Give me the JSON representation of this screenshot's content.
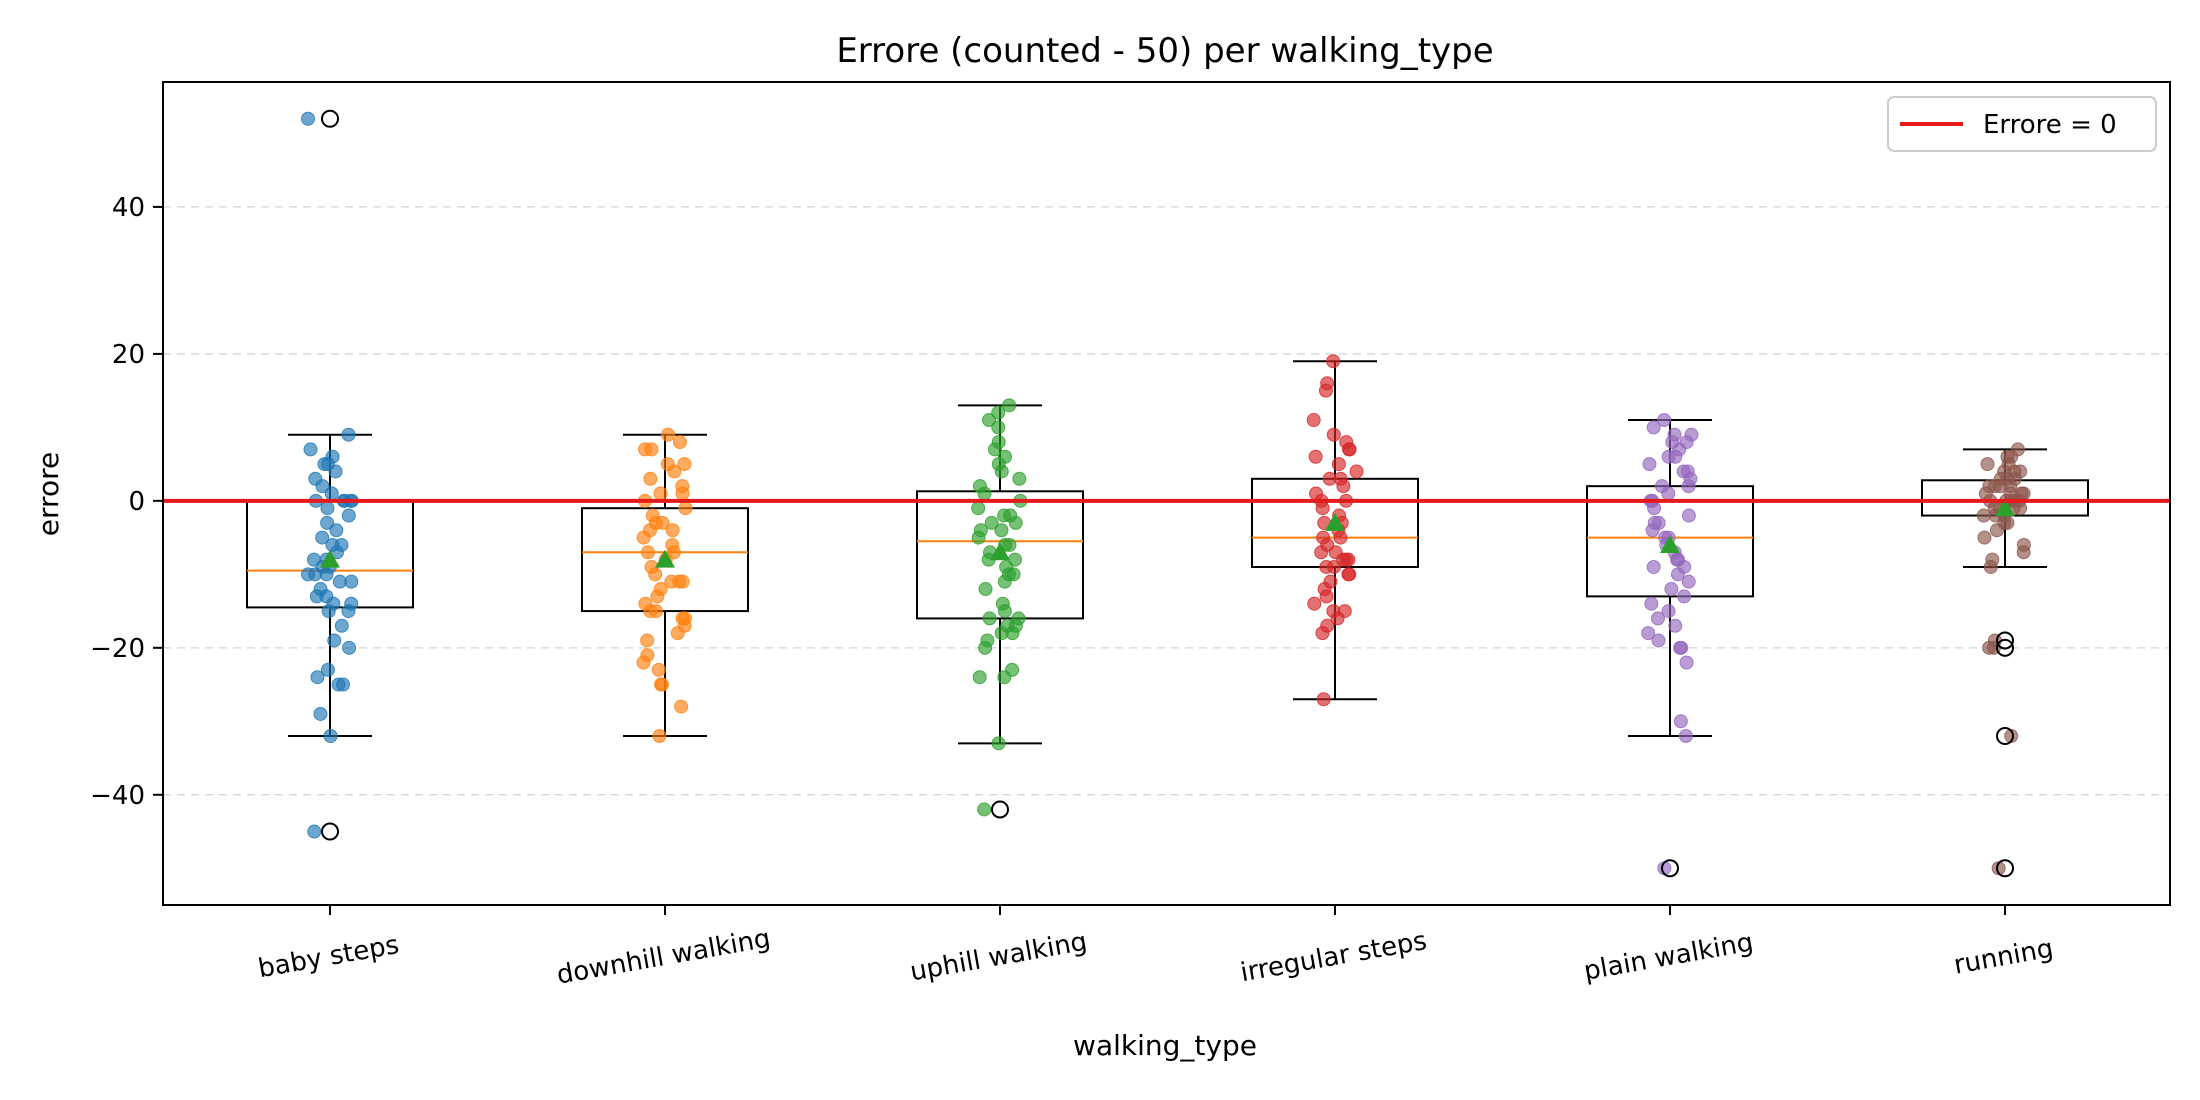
{
  "chart_data": {
    "type": "box",
    "title": "Errore (counted - 50) per walking_type",
    "xlabel": "walking_type",
    "ylabel": "errore",
    "ylim": [
      -55,
      57
    ],
    "yticks": [
      -40,
      -20,
      0,
      20,
      40
    ],
    "ytick_labels": [
      "−40",
      "−20",
      "0",
      "20",
      "40"
    ],
    "grid": "horizontal dashed",
    "legend": {
      "location": "top-right",
      "label": "Errore = 0",
      "color": "#e41a1c"
    },
    "reference_line": {
      "y": 0,
      "color": "#e41a1c"
    },
    "categories": [
      "baby steps",
      "downhill walking",
      "uphill walking",
      "irregular steps",
      "plain walking",
      "running"
    ],
    "series": [
      {
        "category": "baby steps",
        "color": "#1f77b4",
        "q1": -14.5,
        "median": -9.5,
        "q3": 0,
        "mean": -8,
        "whisker_low": -32,
        "whisker_high": 9,
        "outliers": [
          52,
          -45
        ],
        "points": [
          52,
          9,
          7,
          6,
          5,
          5,
          4,
          3,
          2,
          1,
          0,
          0,
          0,
          0,
          0,
          -1,
          -2,
          -3,
          -4,
          -5,
          -6,
          -6,
          -7,
          -8,
          -8,
          -9,
          -9,
          -10,
          -10,
          -10,
          -11,
          -11,
          -12,
          -13,
          -13,
          -14,
          -14,
          -15,
          -15,
          -17,
          -19,
          -20,
          -23,
          -24,
          -25,
          -25,
          -29,
          -32,
          -45
        ]
      },
      {
        "category": "downhill walking",
        "color": "#ff7f0e",
        "q1": -15,
        "median": -7,
        "q3": -1,
        "mean": -8,
        "whisker_low": -32,
        "whisker_high": 9,
        "outliers": [],
        "points": [
          9,
          8,
          7,
          7,
          5,
          5,
          4,
          3,
          2,
          1,
          1,
          0,
          -1,
          -2,
          -3,
          -3,
          -4,
          -4,
          -5,
          -6,
          -7,
          -7,
          -8,
          -9,
          -10,
          -11,
          -11,
          -11,
          -12,
          -13,
          -14,
          -15,
          -15,
          -16,
          -16,
          -17,
          -18,
          -19,
          -21,
          -22,
          -23,
          -25,
          -25,
          -28,
          -32
        ]
      },
      {
        "category": "uphill walking",
        "color": "#2ca02c",
        "q1": -16,
        "median": -5.5,
        "q3": 1.3,
        "mean": -7,
        "whisker_low": -33,
        "whisker_high": 13,
        "outliers": [
          -42
        ],
        "points": [
          13,
          12,
          11,
          10,
          8,
          7,
          6,
          5,
          4,
          3,
          2,
          1,
          0,
          -1,
          -2,
          -2,
          -3,
          -3,
          -4,
          -4,
          -5,
          -6,
          -6,
          -7,
          -8,
          -8,
          -9,
          -10,
          -10,
          -11,
          -12,
          -14,
          -15,
          -16,
          -16,
          -17,
          -17,
          -18,
          -18,
          -19,
          -20,
          -23,
          -24,
          -24,
          -33,
          -42
        ]
      },
      {
        "category": "irregular steps",
        "color": "#d62728",
        "q1": -9,
        "median": -5,
        "q3": 3,
        "mean": -3,
        "whisker_low": -27,
        "whisker_high": 19,
        "outliers": [],
        "points": [
          19,
          16,
          15,
          11,
          9,
          8,
          7,
          7,
          6,
          5,
          4,
          3,
          3,
          2,
          1,
          0,
          0,
          -1,
          -2,
          -3,
          -3,
          -4,
          -5,
          -5,
          -6,
          -7,
          -7,
          -8,
          -8,
          -8,
          -9,
          -9,
          -10,
          -10,
          -11,
          -12,
          -13,
          -14,
          -15,
          -15,
          -16,
          -17,
          -18,
          -27
        ]
      },
      {
        "category": "plain walking",
        "color": "#9467bd",
        "q1": -13,
        "median": -5,
        "q3": 2,
        "mean": -6,
        "whisker_low": -32,
        "whisker_high": 11,
        "outliers": [
          -50
        ],
        "points": [
          11,
          10,
          9,
          9,
          8,
          8,
          7,
          6,
          6,
          5,
          4,
          4,
          3,
          2,
          2,
          1,
          0,
          0,
          -1,
          -2,
          -3,
          -3,
          -4,
          -5,
          -5,
          -6,
          -7,
          -8,
          -8,
          -9,
          -9,
          -10,
          -11,
          -12,
          -13,
          -14,
          -15,
          -16,
          -17,
          -18,
          -19,
          -20,
          -20,
          -22,
          -30,
          -32,
          -50
        ]
      },
      {
        "category": "running",
        "color": "#8c564b",
        "q1": -2,
        "median": 0,
        "q3": 2.8,
        "mean": -1,
        "whisker_low": -9,
        "whisker_high": 7,
        "outliers": [
          -19,
          -20,
          -32,
          -50
        ],
        "points": [
          7,
          6,
          6,
          5,
          5,
          4,
          4,
          4,
          3,
          3,
          3,
          2,
          2,
          2,
          2,
          1,
          1,
          1,
          1,
          0,
          0,
          0,
          0,
          0,
          -1,
          -1,
          -1,
          -1,
          -2,
          -2,
          -2,
          -3,
          -3,
          -4,
          -5,
          -6,
          -7,
          -8,
          -9,
          -19,
          -20,
          -20,
          -32,
          -50
        ]
      }
    ]
  }
}
